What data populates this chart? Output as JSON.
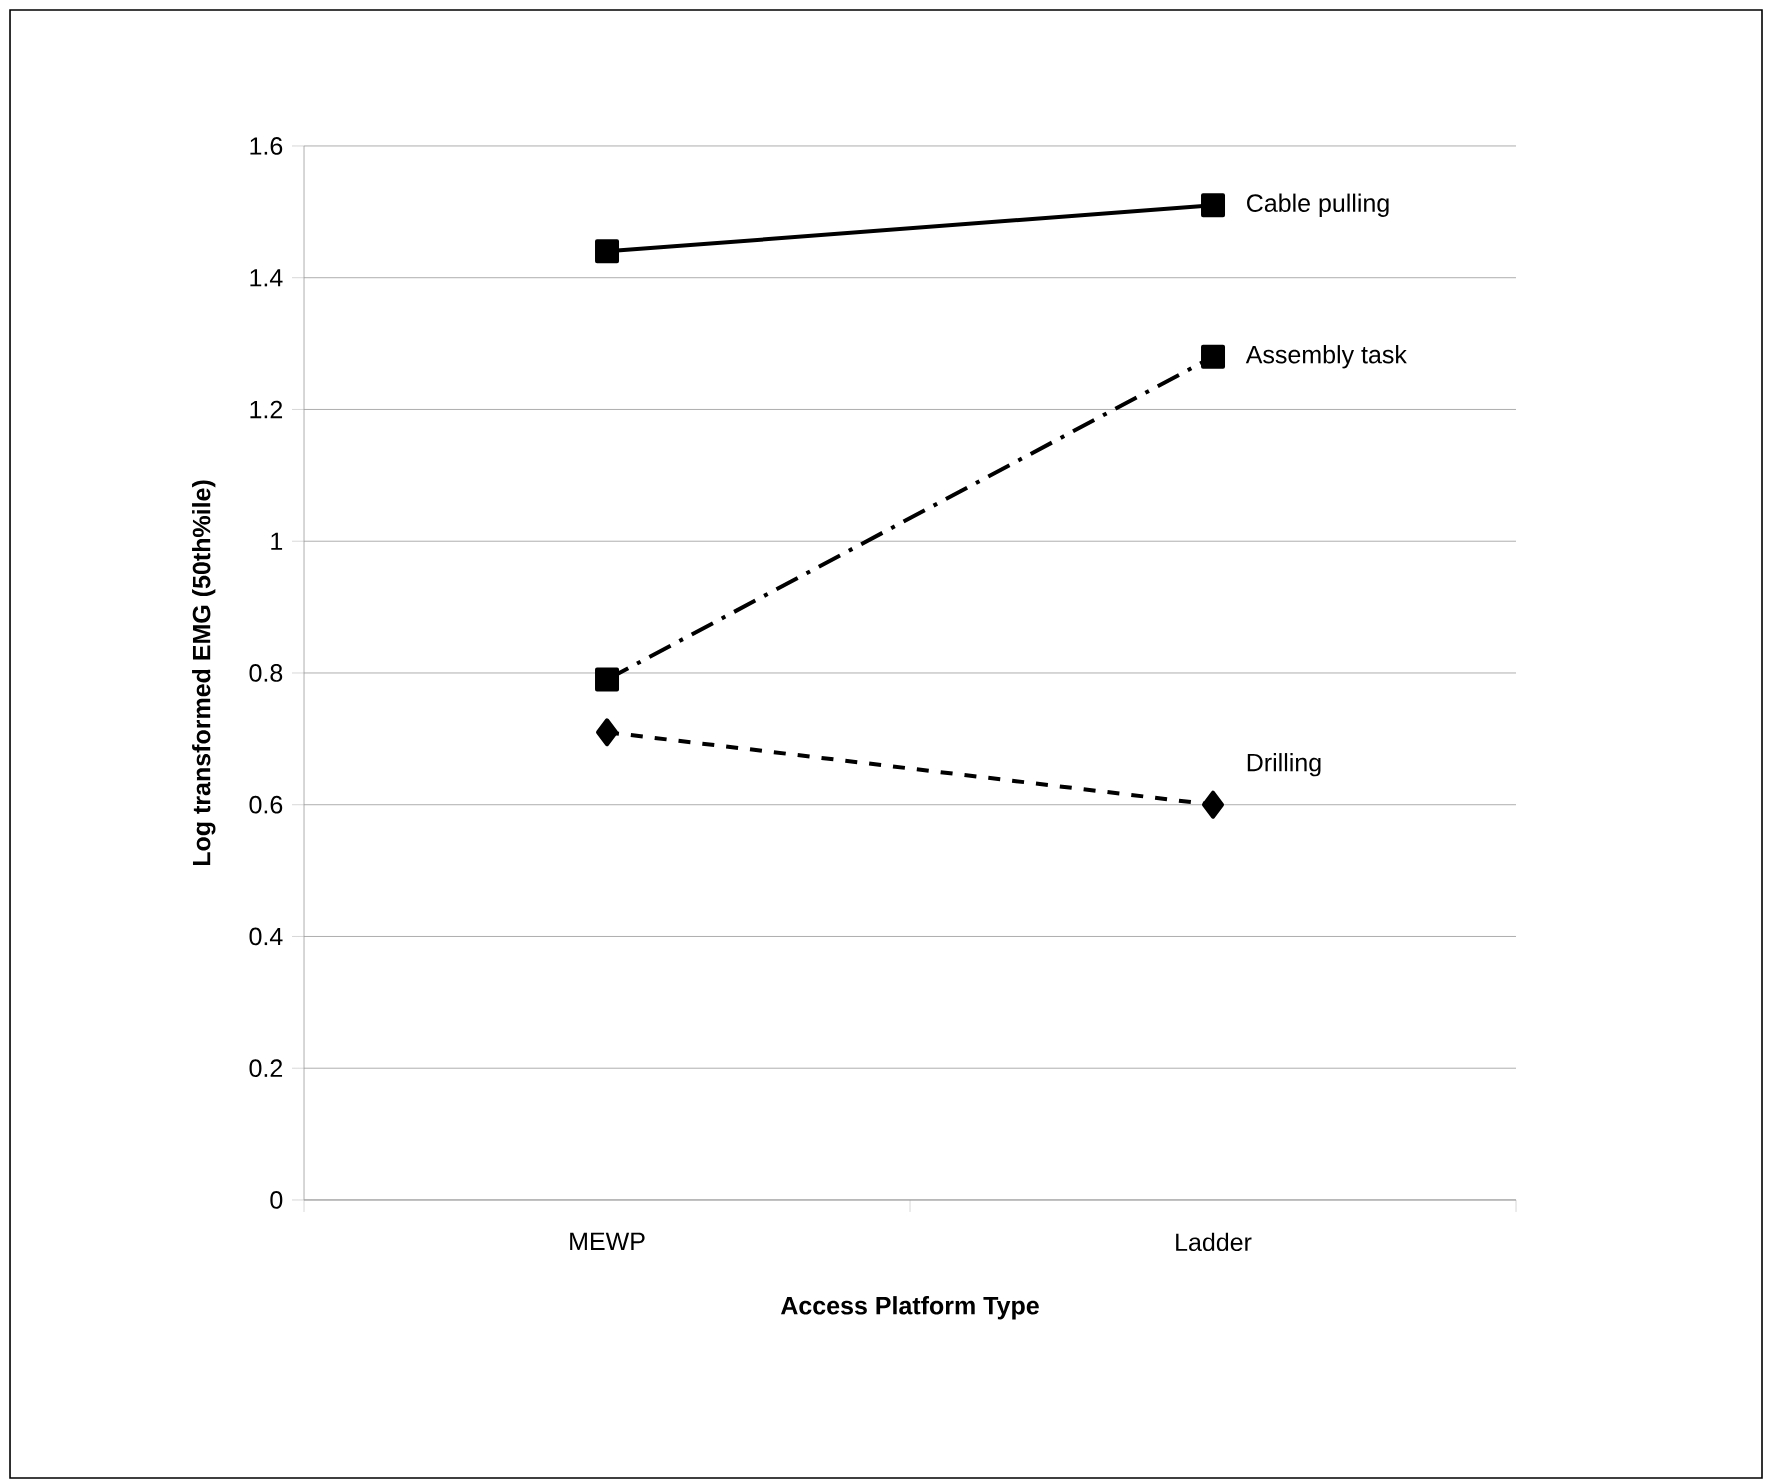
{
  "chart_data": {
    "type": "line",
    "xlabel": "Access Platform Type",
    "ylabel": "Log transformed EMG (50th%ile)",
    "categories": [
      "MEWP",
      "Ladder"
    ],
    "series": [
      {
        "name": "Cable pulling",
        "color": "#000000",
        "values": [
          1.44,
          1.51
        ],
        "marker": "square",
        "line_style": "solid"
      },
      {
        "name": "Assembly task",
        "color": "#000000",
        "values": [
          0.79,
          1.28
        ],
        "marker": "square",
        "line_style": "dashdot"
      },
      {
        "name": "Drilling",
        "color": "#000000",
        "values": [
          0.71,
          0.6
        ],
        "marker": "diamond",
        "line_style": "dashed"
      }
    ],
    "ylim": [
      0,
      1.6
    ],
    "yticks": [
      0,
      0.2,
      0.4,
      0.6,
      0.8,
      1,
      1.2,
      1.4,
      1.6
    ],
    "grid": "y"
  }
}
